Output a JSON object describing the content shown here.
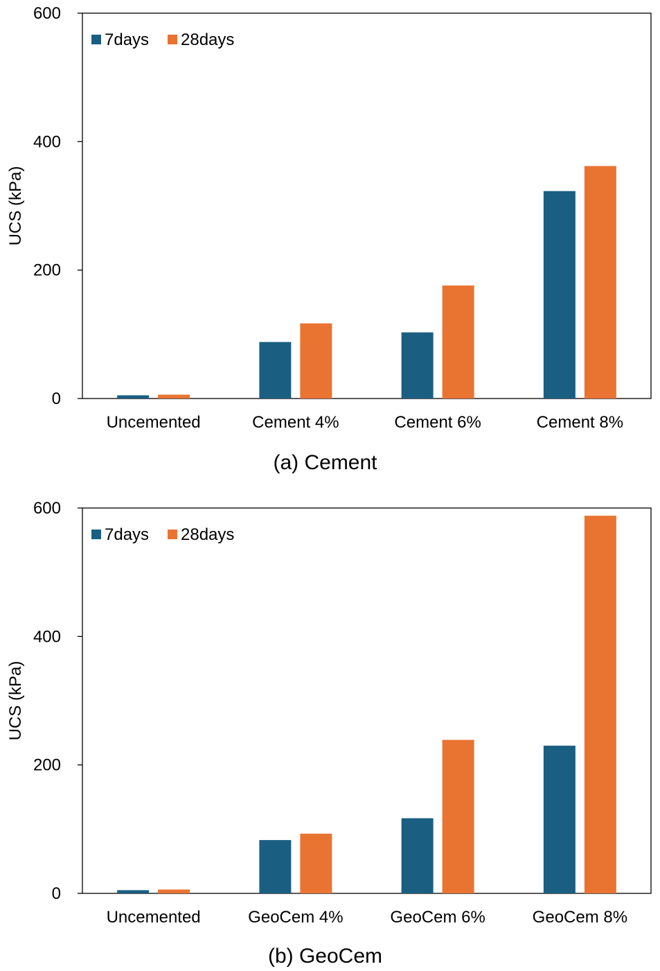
{
  "colors": {
    "7days": "#1a5f82",
    "28days": "#e97432",
    "axis": "#000000"
  },
  "chart_data": [
    {
      "type": "bar",
      "caption": "(a)  Cement",
      "categories": [
        "Uncemented",
        "Cement 4%",
        "Cement 6%",
        "Cement 8%"
      ],
      "series": [
        {
          "name": "7days",
          "values": [
            5,
            88,
            103,
            323
          ]
        },
        {
          "name": "28days",
          "values": [
            6,
            117,
            176,
            362
          ]
        }
      ],
      "ylabel": "UCS (kPa)",
      "ylim": [
        0,
        600
      ],
      "yticks": [
        0,
        200,
        400,
        600
      ],
      "legend": "top-left",
      "grid": false
    },
    {
      "type": "bar",
      "caption": "(b)  GeoCem",
      "categories": [
        "Uncemented",
        "GeoCem 4%",
        "GeoCem 6%",
        "GeoCem 8%"
      ],
      "series": [
        {
          "name": "7days",
          "values": [
            5,
            83,
            117,
            230
          ]
        },
        {
          "name": "28days",
          "values": [
            6,
            93,
            239,
            588
          ]
        }
      ],
      "ylabel": "UCS (kPa)",
      "ylim": [
        0,
        600
      ],
      "yticks": [
        0,
        200,
        400,
        600
      ],
      "legend": "top-left",
      "grid": false
    }
  ]
}
